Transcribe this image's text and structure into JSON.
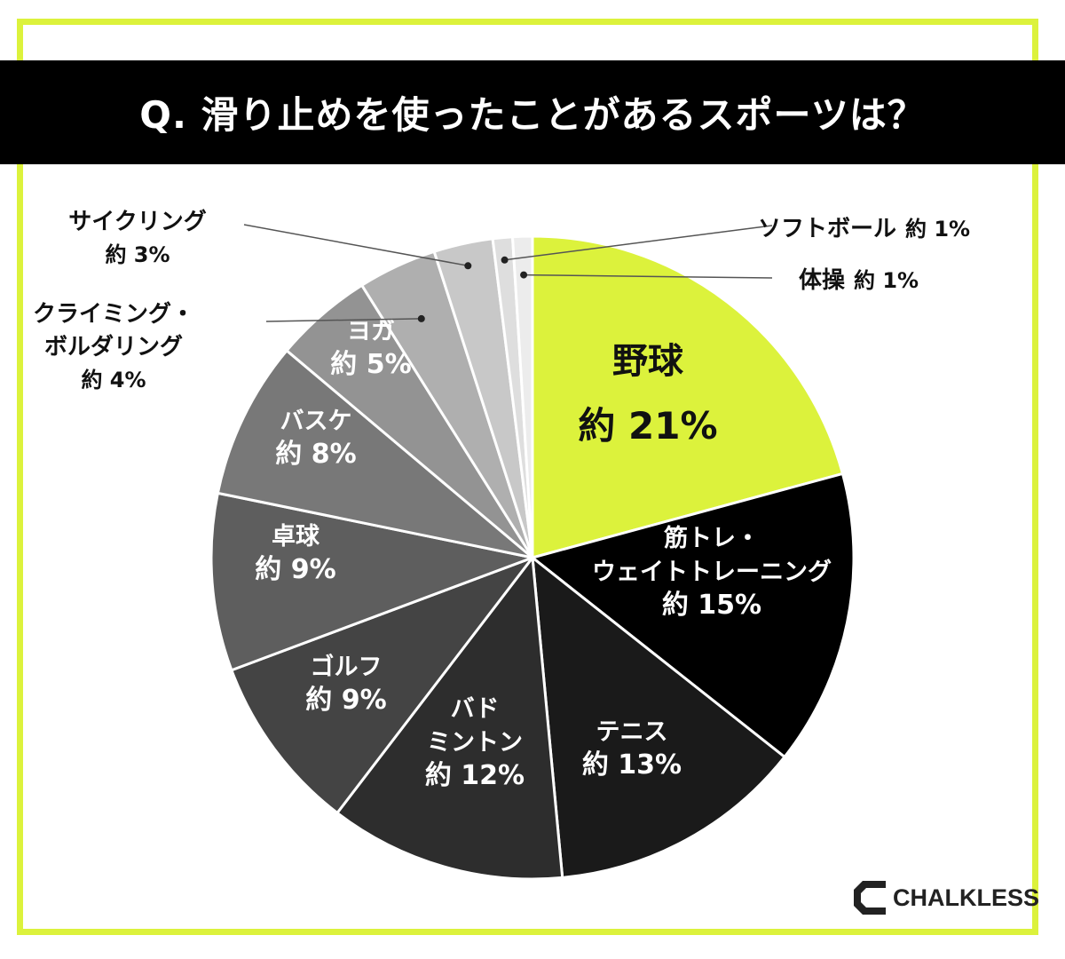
{
  "title": "Q. 滑り止めを使ったことがあるスポーツは？",
  "brand": "CHALKLESS",
  "colors": {
    "accent": "#dcf23c",
    "title_bg": "#000000"
  },
  "chart_data": {
    "type": "pie",
    "title": "Q. 滑り止めを使ったことがあるスポーツは？",
    "value_prefix": "約",
    "unit": "%",
    "slices": [
      {
        "label": [
          "野球"
        ],
        "value": 21,
        "color": "#dcf23c",
        "text_color": "#111111",
        "label_pos": "inside"
      },
      {
        "label": [
          "筋トレ・",
          "ウェイトトレーニング"
        ],
        "value": 15,
        "color": "#000000",
        "text_color": "#ffffff",
        "label_pos": "inside"
      },
      {
        "label": [
          "テニス"
        ],
        "value": 13,
        "color": "#1a1a1a",
        "text_color": "#ffffff",
        "label_pos": "inside"
      },
      {
        "label": [
          "バド",
          "ミントン"
        ],
        "value": 12,
        "color": "#2d2d2d",
        "text_color": "#ffffff",
        "label_pos": "inside"
      },
      {
        "label": [
          "ゴルフ"
        ],
        "value": 9,
        "color": "#444444",
        "text_color": "#ffffff",
        "label_pos": "inside"
      },
      {
        "label": [
          "卓球"
        ],
        "value": 9,
        "color": "#5e5e5e",
        "text_color": "#ffffff",
        "label_pos": "inside"
      },
      {
        "label": [
          "バスケ"
        ],
        "value": 8,
        "color": "#787878",
        "text_color": "#ffffff",
        "label_pos": "inside"
      },
      {
        "label": [
          "ヨガ"
        ],
        "value": 5,
        "color": "#939393",
        "text_color": "#ffffff",
        "label_pos": "inside"
      },
      {
        "label": [
          "クライミング・",
          "ボルダリング"
        ],
        "value": 4,
        "color": "#afafaf",
        "text_color": "#111111",
        "label_pos": "left"
      },
      {
        "label": [
          "サイクリング"
        ],
        "value": 3,
        "color": "#c8c8c8",
        "text_color": "#111111",
        "label_pos": "left"
      },
      {
        "label": [
          "ソフトボール"
        ],
        "value": 1,
        "color": "#dedede",
        "text_color": "#111111",
        "label_pos": "right"
      },
      {
        "label": [
          "体操"
        ],
        "value": 1,
        "color": "#ececec",
        "text_color": "#111111",
        "label_pos": "right"
      }
    ]
  }
}
